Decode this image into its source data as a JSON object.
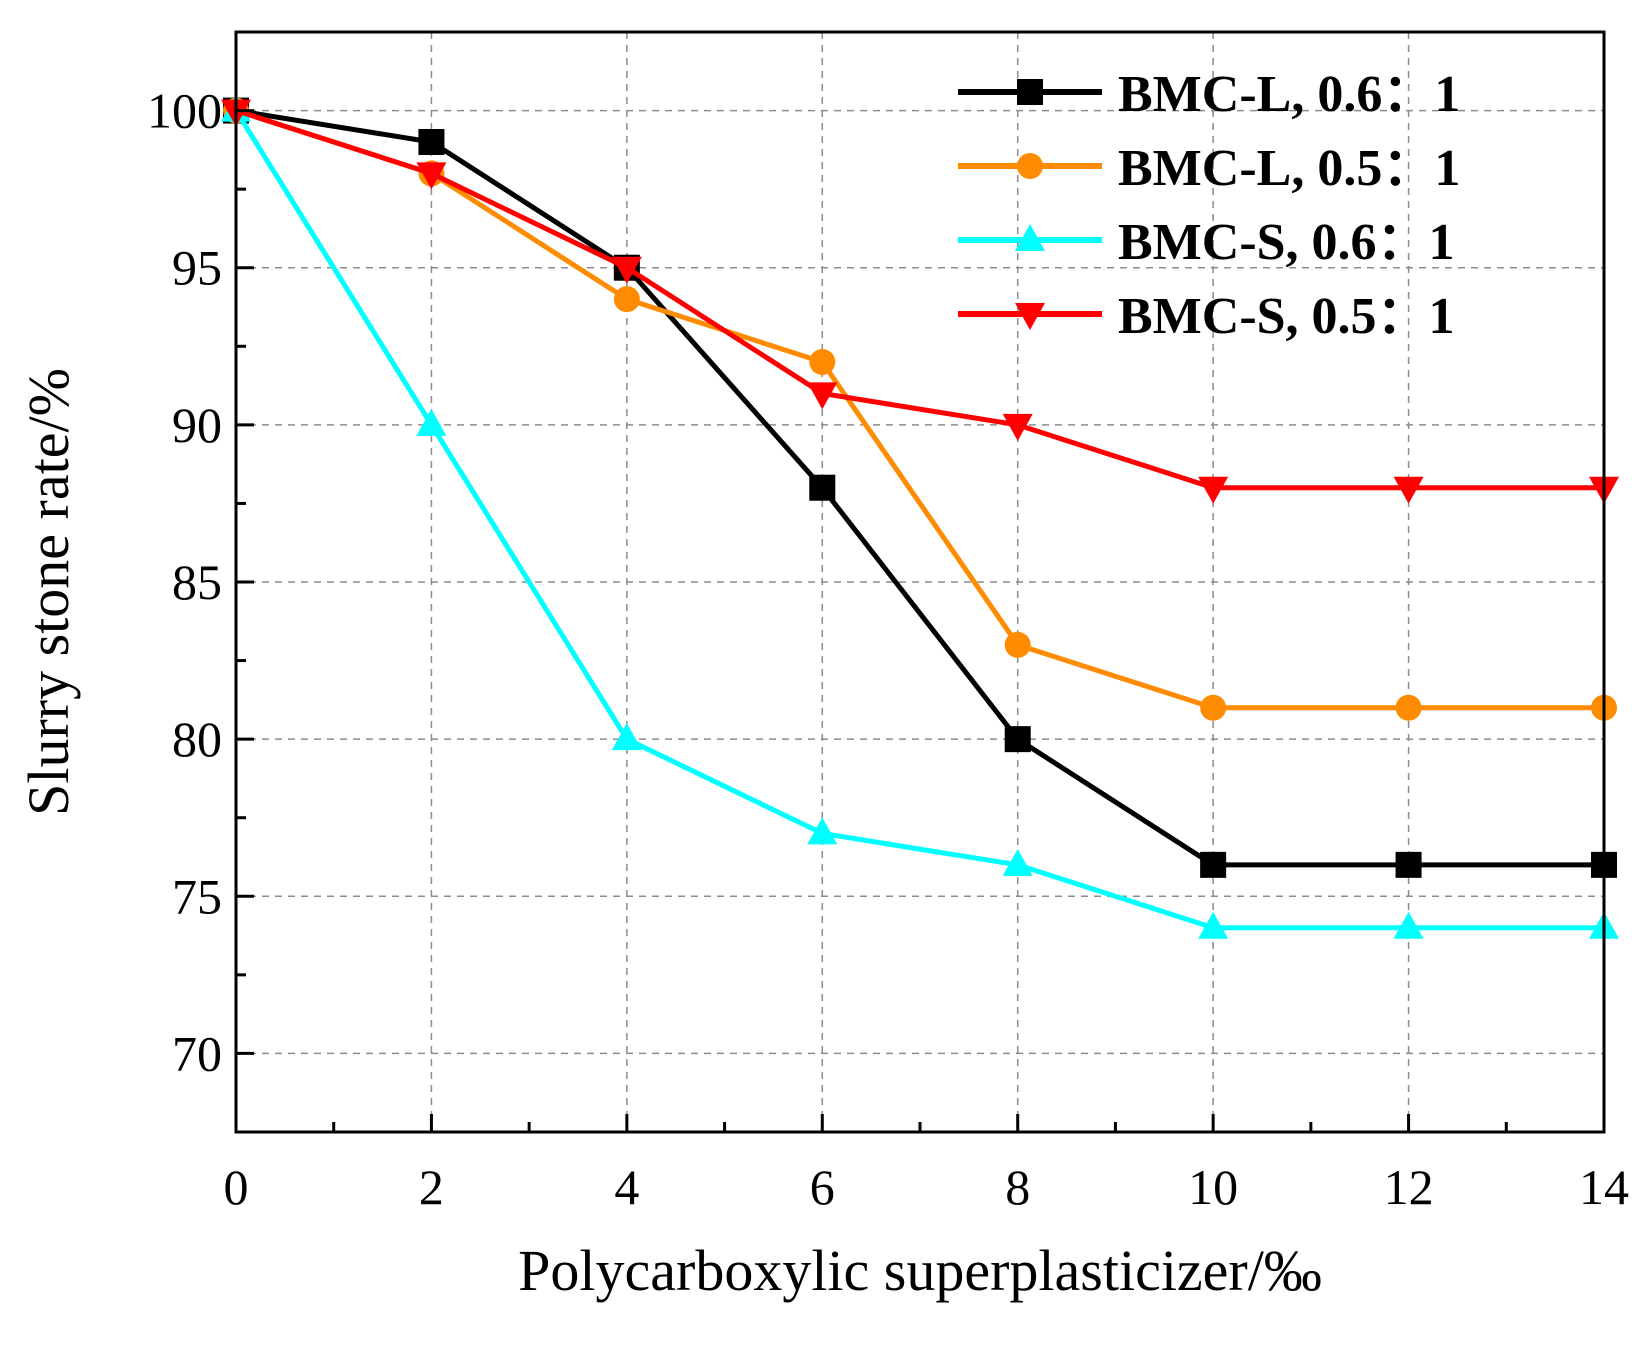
{
  "chart_data": {
    "type": "line",
    "title": "",
    "xlabel": "Polycarboxylic superplasticizer/‰",
    "ylabel": "Slurry stone rate/%",
    "xlim": [
      0,
      14
    ],
    "ylim": [
      67.5,
      102.5
    ],
    "x_ticks": [
      0,
      2,
      4,
      6,
      8,
      10,
      12,
      14
    ],
    "y_ticks": [
      70,
      75,
      80,
      85,
      90,
      95,
      100
    ],
    "grid": true,
    "legend_position": "top-right",
    "x": [
      0,
      2,
      4,
      6,
      8,
      10,
      12,
      14
    ],
    "series": [
      {
        "name": "BMC-L, 0.6：1",
        "marker": "square",
        "color": "#000000",
        "values": [
          100,
          99,
          95,
          88,
          80,
          76,
          76,
          76
        ]
      },
      {
        "name": "BMC-L, 0.5：1",
        "marker": "circle",
        "color": "#ff8c00",
        "values": [
          100,
          98,
          94,
          92,
          83,
          81,
          81,
          81
        ]
      },
      {
        "name": "BMC-S, 0.6：1",
        "marker": "triangle-up",
        "color": "#00ffff",
        "values": [
          100,
          90,
          80,
          77,
          76,
          74,
          74,
          74
        ]
      },
      {
        "name": "BMC-S, 0.5：1",
        "marker": "triangle-down",
        "color": "#ff0000",
        "values": [
          100,
          98,
          95,
          91,
          90,
          88,
          88,
          88
        ]
      }
    ]
  }
}
